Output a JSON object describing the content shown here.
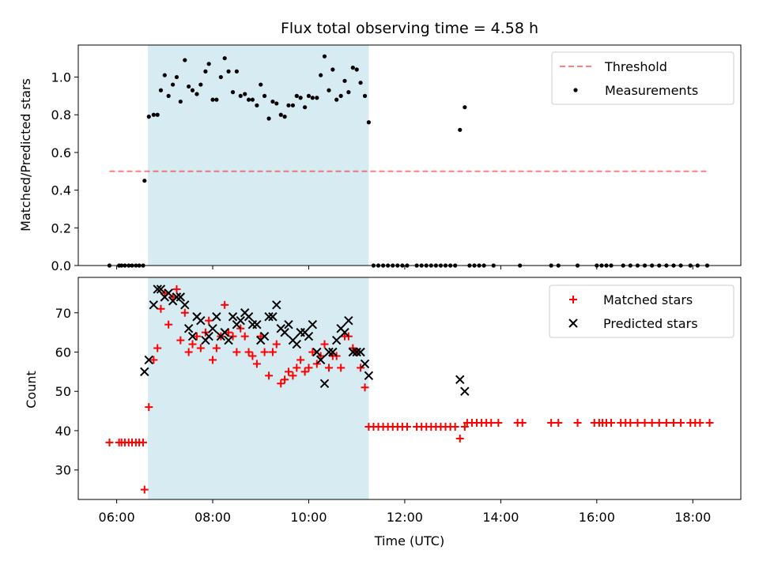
{
  "chart_data": {
    "title": "Flux total observing time = 4.58 h",
    "xlabel": "Time (UTC)",
    "x_unit": "hours UTC",
    "xlim": [
      5.2,
      19.0
    ],
    "x_ticks": [
      6,
      8,
      10,
      12,
      14,
      16,
      18
    ],
    "x_tick_labels": [
      "06:00",
      "08:00",
      "10:00",
      "12:00",
      "14:00",
      "16:00",
      "18:00"
    ],
    "observing_window": [
      6.65,
      11.25
    ],
    "colors": {
      "window": "#add8e6",
      "threshold": "#ff0000",
      "measurements": "#000000",
      "matched": "#ff0000",
      "predicted": "#000000"
    },
    "top": {
      "type": "scatter",
      "ylabel": "Matched/Predicted stars",
      "ylim": [
        0,
        1.17
      ],
      "y_ticks": [
        0,
        0.2,
        0.4,
        0.6,
        0.8,
        1.0
      ],
      "y_tick_labels": [
        "0.0",
        "0.2",
        "0.4",
        "0.6",
        "0.8",
        "1.0"
      ],
      "legend": [
        "Threshold",
        "Measurements"
      ],
      "legend_position": "top-right",
      "threshold": {
        "value": 0.5,
        "x_range": [
          5.85,
          18.3
        ]
      },
      "measurements": [
        [
          5.85,
          0.0
        ],
        [
          6.05,
          0.0
        ],
        [
          6.1,
          0.0
        ],
        [
          6.17,
          0.0
        ],
        [
          6.25,
          0.0
        ],
        [
          6.32,
          0.0
        ],
        [
          6.4,
          0.0
        ],
        [
          6.47,
          0.0
        ],
        [
          6.55,
          0.0
        ],
        [
          6.58,
          0.45
        ],
        [
          6.67,
          0.79
        ],
        [
          6.77,
          0.8
        ],
        [
          6.85,
          0.8
        ],
        [
          6.92,
          0.93
        ],
        [
          7.0,
          1.01
        ],
        [
          7.08,
          0.9
        ],
        [
          7.17,
          0.96
        ],
        [
          7.25,
          1.0
        ],
        [
          7.33,
          0.87
        ],
        [
          7.42,
          1.09
        ],
        [
          7.5,
          0.95
        ],
        [
          7.58,
          0.93
        ],
        [
          7.67,
          0.91
        ],
        [
          7.75,
          0.96
        ],
        [
          7.85,
          1.03
        ],
        [
          7.92,
          1.07
        ],
        [
          8.0,
          0.88
        ],
        [
          8.08,
          0.88
        ],
        [
          8.17,
          1.0
        ],
        [
          8.25,
          1.1
        ],
        [
          8.33,
          1.03
        ],
        [
          8.42,
          0.92
        ],
        [
          8.5,
          1.03
        ],
        [
          8.58,
          0.9
        ],
        [
          8.67,
          0.91
        ],
        [
          8.75,
          0.88
        ],
        [
          8.83,
          0.88
        ],
        [
          8.92,
          0.85
        ],
        [
          9.0,
          0.96
        ],
        [
          9.08,
          0.9
        ],
        [
          9.17,
          0.78
        ],
        [
          9.25,
          0.87
        ],
        [
          9.33,
          0.86
        ],
        [
          9.42,
          0.8
        ],
        [
          9.5,
          0.79
        ],
        [
          9.58,
          0.85
        ],
        [
          9.67,
          0.85
        ],
        [
          9.75,
          0.9
        ],
        [
          9.83,
          0.89
        ],
        [
          9.92,
          0.84
        ],
        [
          10.0,
          0.9
        ],
        [
          10.08,
          0.89
        ],
        [
          10.17,
          0.89
        ],
        [
          10.25,
          1.01
        ],
        [
          10.33,
          1.11
        ],
        [
          10.42,
          0.93
        ],
        [
          10.5,
          1.04
        ],
        [
          10.58,
          0.88
        ],
        [
          10.67,
          0.9
        ],
        [
          10.75,
          0.98
        ],
        [
          10.83,
          0.92
        ],
        [
          10.92,
          1.05
        ],
        [
          11.0,
          1.04
        ],
        [
          11.08,
          0.97
        ],
        [
          11.17,
          0.9
        ],
        [
          11.25,
          0.76
        ],
        [
          11.35,
          0.0
        ],
        [
          11.45,
          0.0
        ],
        [
          11.55,
          0.0
        ],
        [
          11.65,
          0.0
        ],
        [
          11.75,
          0.0
        ],
        [
          11.85,
          0.0
        ],
        [
          11.95,
          0.0
        ],
        [
          12.05,
          0.0
        ],
        [
          12.25,
          0.0
        ],
        [
          12.35,
          0.0
        ],
        [
          12.45,
          0.0
        ],
        [
          12.55,
          0.0
        ],
        [
          12.65,
          0.0
        ],
        [
          12.75,
          0.0
        ],
        [
          12.85,
          0.0
        ],
        [
          12.95,
          0.0
        ],
        [
          13.05,
          0.0
        ],
        [
          13.15,
          0.72
        ],
        [
          13.25,
          0.84
        ],
        [
          13.35,
          0.0
        ],
        [
          13.45,
          0.0
        ],
        [
          13.55,
          0.0
        ],
        [
          13.65,
          0.0
        ],
        [
          13.85,
          0.0
        ],
        [
          14.4,
          0.0
        ],
        [
          15.05,
          0.0
        ],
        [
          15.2,
          0.0
        ],
        [
          15.6,
          0.0
        ],
        [
          16.0,
          0.0
        ],
        [
          16.1,
          0.0
        ],
        [
          16.2,
          0.0
        ],
        [
          16.3,
          0.0
        ],
        [
          16.55,
          0.0
        ],
        [
          16.7,
          0.0
        ],
        [
          16.85,
          0.0
        ],
        [
          17.0,
          0.0
        ],
        [
          17.15,
          0.0
        ],
        [
          17.3,
          0.0
        ],
        [
          17.45,
          0.0
        ],
        [
          17.6,
          0.0
        ],
        [
          17.75,
          0.0
        ],
        [
          17.95,
          0.0
        ],
        [
          18.1,
          0.0
        ],
        [
          18.3,
          0.0
        ]
      ]
    },
    "bottom": {
      "type": "scatter",
      "ylabel": "Count",
      "ylim": [
        22.5,
        79
      ],
      "y_ticks": [
        30,
        40,
        50,
        60,
        70
      ],
      "y_tick_labels": [
        "30",
        "40",
        "50",
        "60",
        "70"
      ],
      "legend": [
        "Matched stars",
        "Predicted stars"
      ],
      "legend_position": "top-right",
      "matched": [
        [
          5.85,
          37
        ],
        [
          6.05,
          37
        ],
        [
          6.1,
          37
        ],
        [
          6.17,
          37
        ],
        [
          6.25,
          37
        ],
        [
          6.32,
          37
        ],
        [
          6.4,
          37
        ],
        [
          6.47,
          37
        ],
        [
          6.55,
          37
        ],
        [
          6.58,
          25
        ],
        [
          6.67,
          46
        ],
        [
          6.77,
          58
        ],
        [
          6.85,
          61
        ],
        [
          6.92,
          71
        ],
        [
          7.0,
          75
        ],
        [
          7.08,
          67
        ],
        [
          7.17,
          74
        ],
        [
          7.25,
          76
        ],
        [
          7.33,
          63
        ],
        [
          7.42,
          70
        ],
        [
          7.5,
          60
        ],
        [
          7.58,
          62
        ],
        [
          7.67,
          64
        ],
        [
          7.75,
          61
        ],
        [
          7.85,
          65
        ],
        [
          7.92,
          68
        ],
        [
          8.0,
          58
        ],
        [
          8.08,
          61
        ],
        [
          8.17,
          64
        ],
        [
          8.25,
          72
        ],
        [
          8.33,
          65
        ],
        [
          8.42,
          64
        ],
        [
          8.5,
          60
        ],
        [
          8.58,
          66
        ],
        [
          8.67,
          64
        ],
        [
          8.75,
          60
        ],
        [
          8.83,
          59
        ],
        [
          8.92,
          57
        ],
        [
          9.0,
          64
        ],
        [
          9.08,
          60
        ],
        [
          9.17,
          54
        ],
        [
          9.25,
          60
        ],
        [
          9.33,
          62
        ],
        [
          9.42,
          52
        ],
        [
          9.5,
          53
        ],
        [
          9.58,
          55
        ],
        [
          9.67,
          54
        ],
        [
          9.75,
          56
        ],
        [
          9.83,
          58
        ],
        [
          9.92,
          55
        ],
        [
          10.0,
          56
        ],
        [
          10.08,
          60
        ],
        [
          10.17,
          57
        ],
        [
          10.25,
          59
        ],
        [
          10.33,
          62
        ],
        [
          10.42,
          56
        ],
        [
          10.5,
          59
        ],
        [
          10.58,
          59
        ],
        [
          10.67,
          56
        ],
        [
          10.75,
          64
        ],
        [
          10.83,
          64
        ],
        [
          10.92,
          61
        ],
        [
          11.0,
          60
        ],
        [
          11.08,
          56
        ],
        [
          11.17,
          51
        ],
        [
          11.25,
          41
        ],
        [
          11.35,
          41
        ],
        [
          11.45,
          41
        ],
        [
          11.55,
          41
        ],
        [
          11.65,
          41
        ],
        [
          11.75,
          41
        ],
        [
          11.85,
          41
        ],
        [
          11.95,
          41
        ],
        [
          12.05,
          41
        ],
        [
          12.25,
          41
        ],
        [
          12.35,
          41
        ],
        [
          12.45,
          41
        ],
        [
          12.55,
          41
        ],
        [
          12.65,
          41
        ],
        [
          12.75,
          41
        ],
        [
          12.85,
          41
        ],
        [
          12.95,
          41
        ],
        [
          13.05,
          41
        ],
        [
          13.15,
          38
        ],
        [
          13.25,
          41
        ],
        [
          13.3,
          42
        ],
        [
          13.4,
          42
        ],
        [
          13.5,
          42
        ],
        [
          13.6,
          42
        ],
        [
          13.7,
          42
        ],
        [
          13.8,
          42
        ],
        [
          13.95,
          42
        ],
        [
          14.35,
          42
        ],
        [
          14.45,
          42
        ],
        [
          15.05,
          42
        ],
        [
          15.2,
          42
        ],
        [
          15.6,
          42
        ],
        [
          15.95,
          42
        ],
        [
          16.05,
          42
        ],
        [
          16.12,
          42
        ],
        [
          16.2,
          42
        ],
        [
          16.3,
          42
        ],
        [
          16.5,
          42
        ],
        [
          16.6,
          42
        ],
        [
          16.7,
          42
        ],
        [
          16.85,
          42
        ],
        [
          17.0,
          42
        ],
        [
          17.15,
          42
        ],
        [
          17.3,
          42
        ],
        [
          17.45,
          42
        ],
        [
          17.6,
          42
        ],
        [
          17.75,
          42
        ],
        [
          17.95,
          42
        ],
        [
          18.05,
          42
        ],
        [
          18.15,
          42
        ],
        [
          18.35,
          42
        ]
      ],
      "predicted": [
        [
          6.58,
          55
        ],
        [
          6.67,
          58
        ],
        [
          6.77,
          72
        ],
        [
          6.85,
          76
        ],
        [
          6.92,
          76
        ],
        [
          7.0,
          74
        ],
        [
          7.08,
          75
        ],
        [
          7.17,
          73
        ],
        [
          7.25,
          74
        ],
        [
          7.33,
          74
        ],
        [
          7.42,
          72
        ],
        [
          7.5,
          66
        ],
        [
          7.58,
          64
        ],
        [
          7.67,
          69
        ],
        [
          7.75,
          68
        ],
        [
          7.85,
          63
        ],
        [
          7.92,
          64
        ],
        [
          8.0,
          66
        ],
        [
          8.08,
          69
        ],
        [
          8.17,
          64
        ],
        [
          8.25,
          65
        ],
        [
          8.33,
          63
        ],
        [
          8.42,
          69
        ],
        [
          8.5,
          67
        ],
        [
          8.58,
          68
        ],
        [
          8.67,
          70
        ],
        [
          8.75,
          69
        ],
        [
          8.83,
          67
        ],
        [
          8.92,
          67
        ],
        [
          9.0,
          63
        ],
        [
          9.08,
          64
        ],
        [
          9.17,
          69
        ],
        [
          9.25,
          69
        ],
        [
          9.33,
          72
        ],
        [
          9.42,
          66
        ],
        [
          9.5,
          65
        ],
        [
          9.58,
          67
        ],
        [
          9.67,
          63
        ],
        [
          9.75,
          62
        ],
        [
          9.83,
          65
        ],
        [
          9.92,
          65
        ],
        [
          10.0,
          64
        ],
        [
          10.08,
          67
        ],
        [
          10.17,
          60
        ],
        [
          10.25,
          58
        ],
        [
          10.33,
          52
        ],
        [
          10.42,
          60
        ],
        [
          10.5,
          60
        ],
        [
          10.58,
          63
        ],
        [
          10.67,
          66
        ],
        [
          10.75,
          65
        ],
        [
          10.83,
          68
        ],
        [
          10.92,
          60
        ],
        [
          11.0,
          60
        ],
        [
          11.08,
          60
        ],
        [
          11.17,
          57
        ],
        [
          11.25,
          54
        ],
        [
          13.15,
          53
        ],
        [
          13.25,
          50
        ]
      ]
    }
  }
}
